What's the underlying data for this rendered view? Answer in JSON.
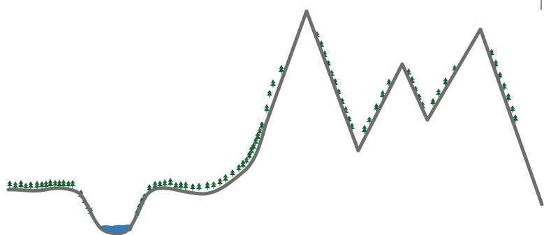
{
  "scene": {
    "colors": {
      "background": "#ffffff",
      "terrain": "#6e6e6e",
      "tree": "#1a6b3a",
      "tree_dark": "#0f5a2e",
      "water": "#2f7fc0",
      "corner_mark": "#888888"
    },
    "features": {
      "terrain": "terrain-profile-line",
      "forest": "pine-tree-icon",
      "lake": "lake-water",
      "peaks": 3
    }
  }
}
